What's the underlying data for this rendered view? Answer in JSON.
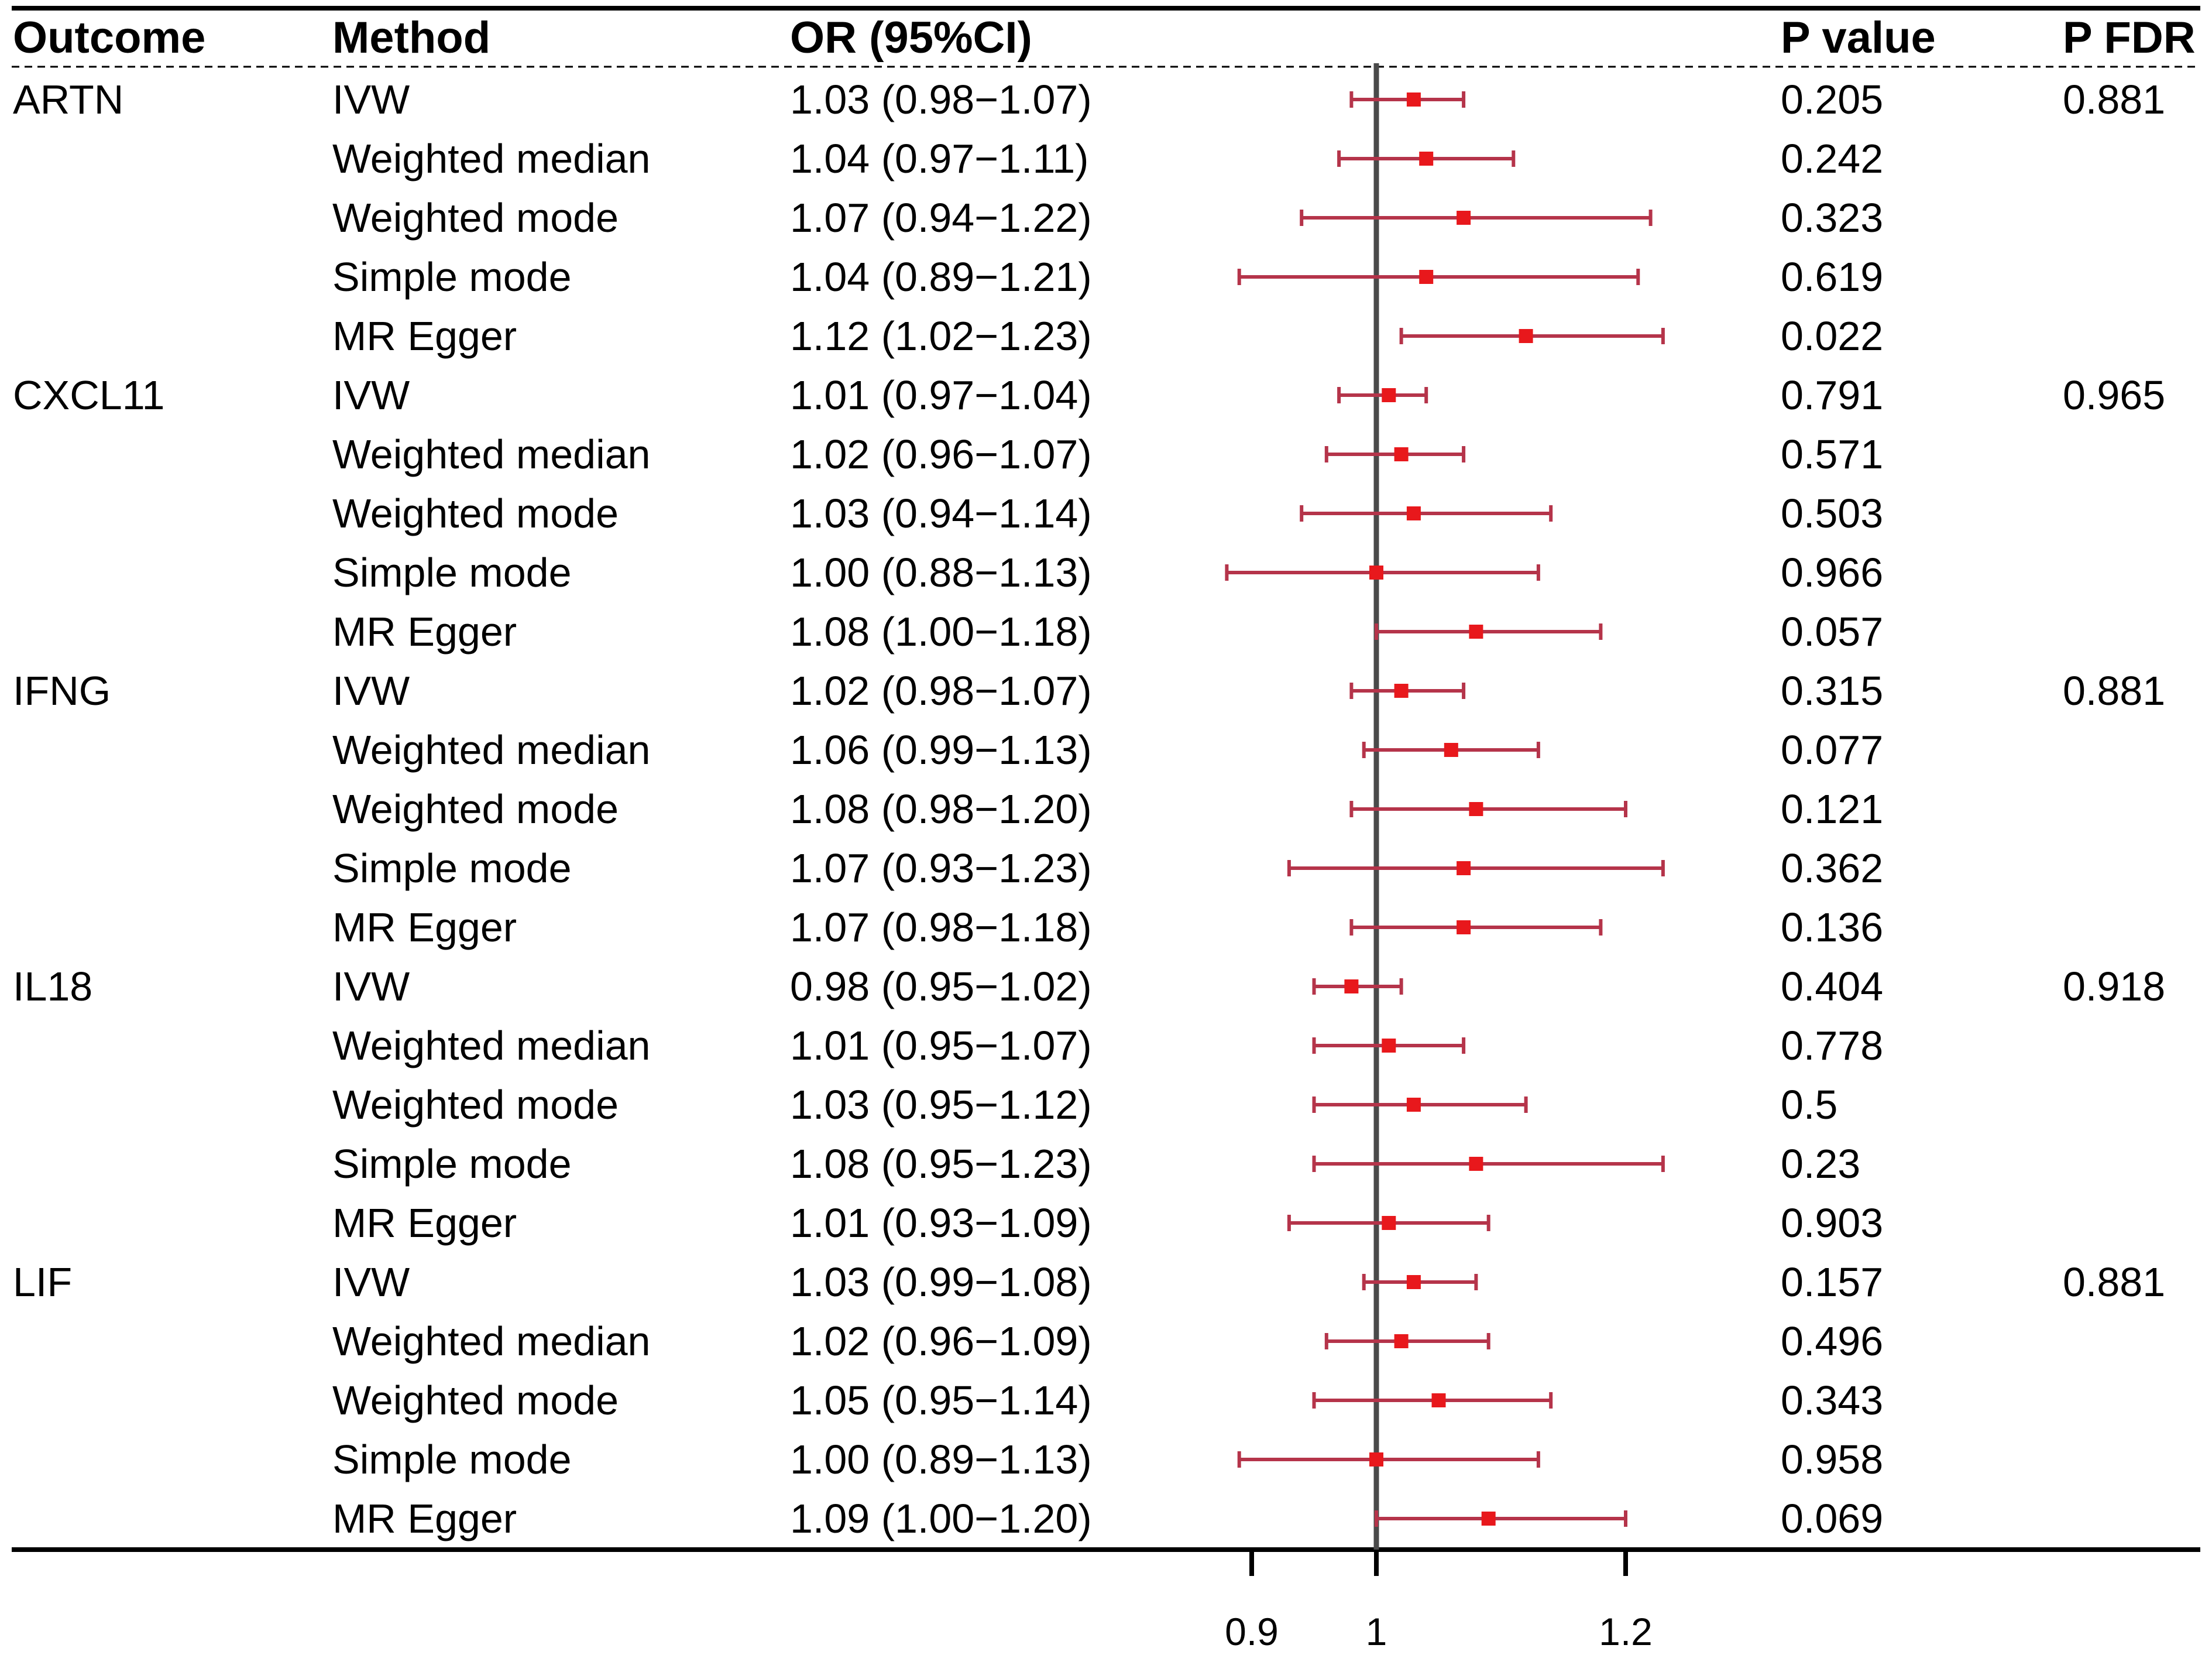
{
  "chart_data": {
    "type": "forest",
    "title": "",
    "xlabel": "",
    "ylabel": "",
    "reference_line": 1,
    "xlim": [
      0.88,
      1.24
    ],
    "x_ticks": [
      0.9,
      1,
      1.2
    ],
    "x_tick_labels": [
      "0.9",
      "1",
      "1.2"
    ],
    "headers": {
      "outcome": "Outcome",
      "method": "Method",
      "or": "OR (95%CI)",
      "p": "P value",
      "pfdr": "P FDR"
    },
    "rows": [
      {
        "outcome": "ARTN",
        "method": "IVW",
        "or_text": "1.03 (0.98−1.07)",
        "or": 1.03,
        "lo": 0.98,
        "hi": 1.07,
        "p": "0.205",
        "pfdr": "0.881"
      },
      {
        "outcome": "",
        "method": "Weighted median",
        "or_text": "1.04 (0.97−1.11)",
        "or": 1.04,
        "lo": 0.97,
        "hi": 1.11,
        "p": "0.242",
        "pfdr": ""
      },
      {
        "outcome": "",
        "method": "Weighted mode",
        "or_text": "1.07 (0.94−1.22)",
        "or": 1.07,
        "lo": 0.94,
        "hi": 1.22,
        "p": "0.323",
        "pfdr": ""
      },
      {
        "outcome": "",
        "method": "Simple mode",
        "or_text": "1.04 (0.89−1.21)",
        "or": 1.04,
        "lo": 0.89,
        "hi": 1.21,
        "p": "0.619",
        "pfdr": ""
      },
      {
        "outcome": "",
        "method": "MR Egger",
        "or_text": "1.12 (1.02−1.23)",
        "or": 1.12,
        "lo": 1.02,
        "hi": 1.23,
        "p": "0.022",
        "pfdr": ""
      },
      {
        "outcome": "CXCL11",
        "method": "IVW",
        "or_text": "1.01 (0.97−1.04)",
        "or": 1.01,
        "lo": 0.97,
        "hi": 1.04,
        "p": "0.791",
        "pfdr": "0.965"
      },
      {
        "outcome": "",
        "method": "Weighted median",
        "or_text": "1.02 (0.96−1.07)",
        "or": 1.02,
        "lo": 0.96,
        "hi": 1.07,
        "p": "0.571",
        "pfdr": ""
      },
      {
        "outcome": "",
        "method": "Weighted mode",
        "or_text": "1.03 (0.94−1.14)",
        "or": 1.03,
        "lo": 0.94,
        "hi": 1.14,
        "p": "0.503",
        "pfdr": ""
      },
      {
        "outcome": "",
        "method": "Simple mode",
        "or_text": "1.00 (0.88−1.13)",
        "or": 1.0,
        "lo": 0.88,
        "hi": 1.13,
        "p": "0.966",
        "pfdr": ""
      },
      {
        "outcome": "",
        "method": "MR Egger",
        "or_text": "1.08 (1.00−1.18)",
        "or": 1.08,
        "lo": 1.0,
        "hi": 1.18,
        "p": "0.057",
        "pfdr": ""
      },
      {
        "outcome": "IFNG",
        "method": "IVW",
        "or_text": "1.02 (0.98−1.07)",
        "or": 1.02,
        "lo": 0.98,
        "hi": 1.07,
        "p": "0.315",
        "pfdr": "0.881"
      },
      {
        "outcome": "",
        "method": "Weighted median",
        "or_text": "1.06 (0.99−1.13)",
        "or": 1.06,
        "lo": 0.99,
        "hi": 1.13,
        "p": "0.077",
        "pfdr": ""
      },
      {
        "outcome": "",
        "method": "Weighted mode",
        "or_text": "1.08 (0.98−1.20)",
        "or": 1.08,
        "lo": 0.98,
        "hi": 1.2,
        "p": "0.121",
        "pfdr": ""
      },
      {
        "outcome": "",
        "method": "Simple mode",
        "or_text": "1.07 (0.93−1.23)",
        "or": 1.07,
        "lo": 0.93,
        "hi": 1.23,
        "p": "0.362",
        "pfdr": ""
      },
      {
        "outcome": "",
        "method": "MR Egger",
        "or_text": "1.07 (0.98−1.18)",
        "or": 1.07,
        "lo": 0.98,
        "hi": 1.18,
        "p": "0.136",
        "pfdr": ""
      },
      {
        "outcome": "IL18",
        "method": "IVW",
        "or_text": "0.98 (0.95−1.02)",
        "or": 0.98,
        "lo": 0.95,
        "hi": 1.02,
        "p": "0.404",
        "pfdr": "0.918"
      },
      {
        "outcome": "",
        "method": "Weighted median",
        "or_text": "1.01 (0.95−1.07)",
        "or": 1.01,
        "lo": 0.95,
        "hi": 1.07,
        "p": "0.778",
        "pfdr": ""
      },
      {
        "outcome": "",
        "method": "Weighted mode",
        "or_text": "1.03 (0.95−1.12)",
        "or": 1.03,
        "lo": 0.95,
        "hi": 1.12,
        "p": "0.5",
        "pfdr": ""
      },
      {
        "outcome": "",
        "method": "Simple mode",
        "or_text": "1.08 (0.95−1.23)",
        "or": 1.08,
        "lo": 0.95,
        "hi": 1.23,
        "p": "0.23",
        "pfdr": ""
      },
      {
        "outcome": "",
        "method": "MR Egger",
        "or_text": "1.01 (0.93−1.09)",
        "or": 1.01,
        "lo": 0.93,
        "hi": 1.09,
        "p": "0.903",
        "pfdr": ""
      },
      {
        "outcome": "LIF",
        "method": "IVW",
        "or_text": "1.03 (0.99−1.08)",
        "or": 1.03,
        "lo": 0.99,
        "hi": 1.08,
        "p": "0.157",
        "pfdr": "0.881"
      },
      {
        "outcome": "",
        "method": "Weighted median",
        "or_text": "1.02 (0.96−1.09)",
        "or": 1.02,
        "lo": 0.96,
        "hi": 1.09,
        "p": "0.496",
        "pfdr": ""
      },
      {
        "outcome": "",
        "method": "Weighted mode",
        "or_text": "1.05 (0.95−1.14)",
        "or": 1.05,
        "lo": 0.95,
        "hi": 1.14,
        "p": "0.343",
        "pfdr": ""
      },
      {
        "outcome": "",
        "method": "Simple mode",
        "or_text": "1.00 (0.89−1.13)",
        "or": 1.0,
        "lo": 0.89,
        "hi": 1.13,
        "p": "0.958",
        "pfdr": ""
      },
      {
        "outcome": "",
        "method": "MR Egger",
        "or_text": "1.09 (1.00−1.20)",
        "or": 1.09,
        "lo": 1.0,
        "hi": 1.2,
        "p": "0.069",
        "pfdr": ""
      }
    ]
  },
  "colors": {
    "ci_line": "#b5344a",
    "point": "#e8181c",
    "reference_line": "#4a4a4a",
    "text": "#000000"
  }
}
